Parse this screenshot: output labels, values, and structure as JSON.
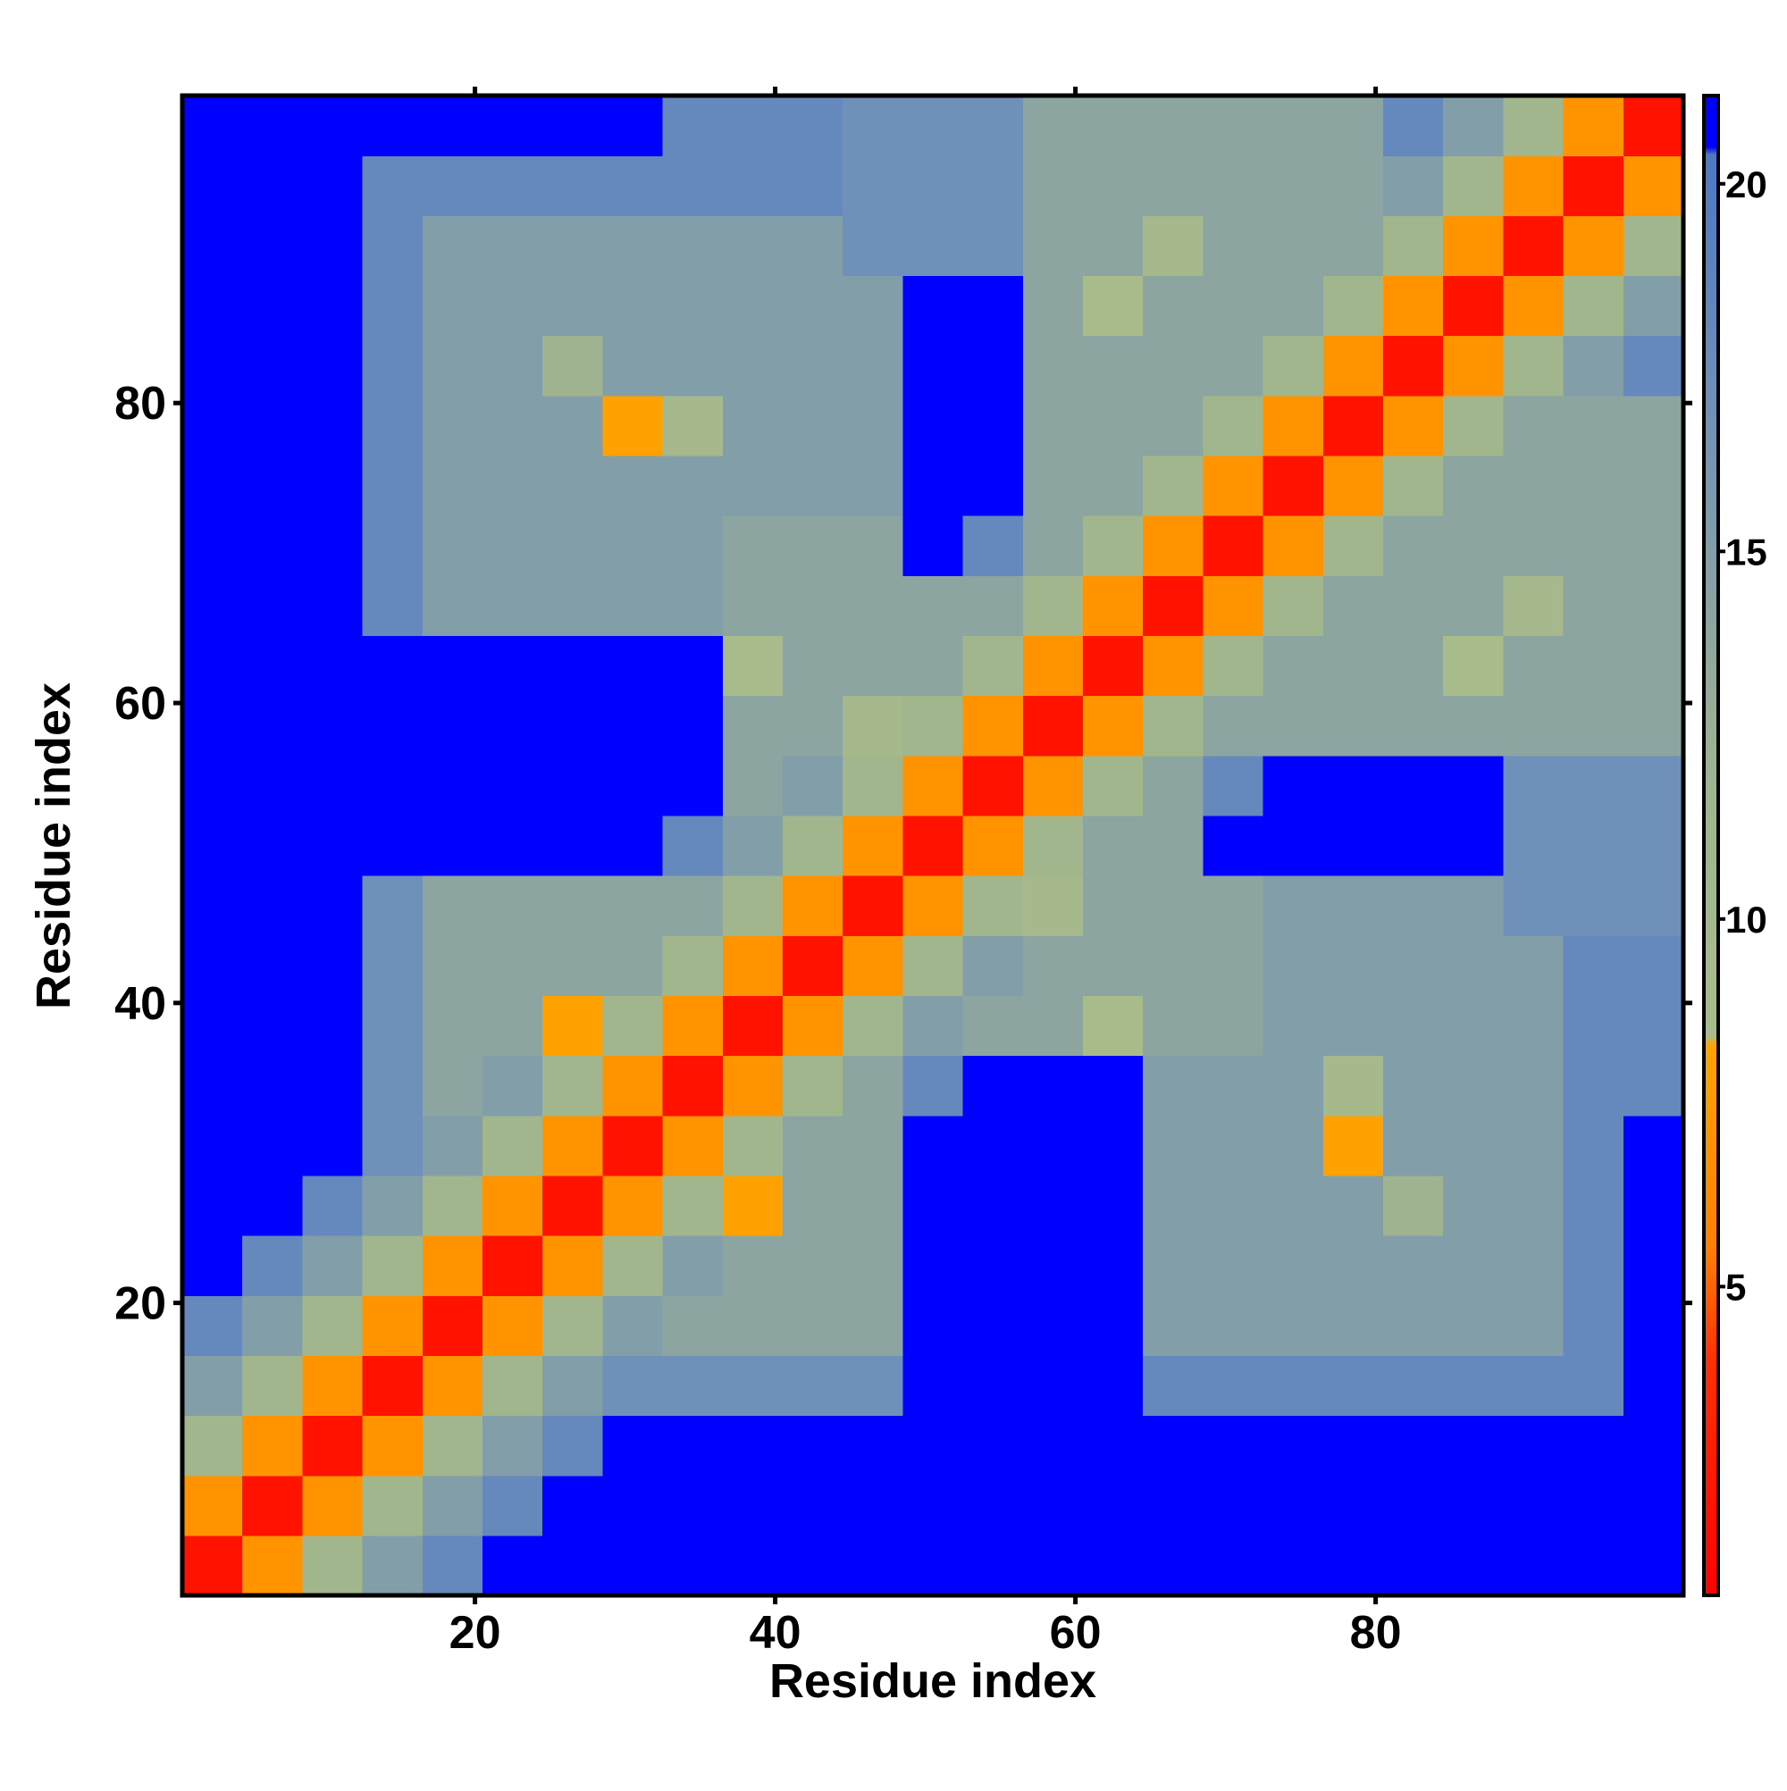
{
  "chart_data": {
    "type": "heatmap",
    "x_label": "Residue index",
    "y_label": "Residue index",
    "x": [
      2.5,
      6.5,
      10.5,
      14.5,
      18.5,
      22.5,
      26.5,
      30.5,
      34.5,
      38.5,
      42.5,
      46.5,
      50.5,
      54.5,
      58.5,
      62.5,
      66.5,
      70.5,
      74.5,
      78.5,
      82.5,
      86.5,
      90.5,
      94.5,
      98.5
    ],
    "y": [
      2.5,
      6.5,
      10.5,
      14.5,
      18.5,
      22.5,
      26.5,
      30.5,
      34.5,
      38.5,
      42.5,
      46.5,
      50.5,
      54.5,
      58.5,
      62.5,
      66.5,
      70.5,
      74.5,
      78.5,
      82.5,
      86.5,
      90.5,
      94.5,
      98.5
    ],
    "z": [
      [
        2,
        7,
        11,
        15,
        18,
        22,
        22,
        22,
        22,
        22,
        22,
        22,
        22,
        22,
        22,
        22,
        22,
        22,
        22,
        22,
        22,
        22,
        22,
        22,
        22
      ],
      [
        7,
        2,
        7,
        11,
        15,
        18,
        22,
        22,
        22,
        22,
        22,
        22,
        22,
        22,
        22,
        22,
        22,
        22,
        22,
        22,
        22,
        22,
        22,
        22,
        22
      ],
      [
        11,
        7,
        2,
        7,
        11,
        15,
        18,
        22,
        22,
        22,
        22,
        22,
        22,
        22,
        22,
        22,
        22,
        22,
        22,
        22,
        22,
        22,
        22,
        22,
        22
      ],
      [
        15,
        11,
        7,
        2,
        7,
        11,
        15,
        17,
        17,
        17,
        17,
        17,
        22,
        22,
        22,
        22,
        18,
        18,
        18,
        18,
        18,
        18,
        18,
        18,
        22
      ],
      [
        18,
        15,
        11,
        7,
        2,
        7,
        11,
        15,
        14,
        14,
        14,
        14,
        22,
        22,
        22,
        22,
        15,
        15,
        15,
        15,
        15,
        15,
        15,
        18,
        22
      ],
      [
        22,
        18,
        15,
        11,
        7,
        2,
        7,
        11,
        15,
        14,
        14,
        14,
        22,
        22,
        22,
        22,
        15,
        15,
        15,
        15,
        15,
        15,
        15,
        18,
        22
      ],
      [
        22,
        22,
        18,
        15,
        11,
        7,
        2,
        7,
        11,
        8,
        14,
        14,
        22,
        22,
        22,
        22,
        15,
        15,
        15,
        15,
        12,
        15,
        15,
        18,
        22
      ],
      [
        22,
        22,
        22,
        17,
        15,
        11,
        7,
        2,
        7,
        11,
        14,
        14,
        22,
        22,
        22,
        22,
        15,
        15,
        15,
        8,
        15,
        15,
        15,
        18,
        22
      ],
      [
        22,
        22,
        22,
        17,
        14,
        15,
        11,
        7,
        2,
        7,
        11,
        14,
        18,
        22,
        22,
        22,
        15,
        15,
        15,
        10,
        15,
        15,
        15,
        18,
        18
      ],
      [
        22,
        22,
        22,
        17,
        14,
        14,
        8,
        11,
        7,
        2,
        7,
        11,
        15,
        14,
        14,
        9,
        14,
        14,
        15,
        15,
        15,
        15,
        15,
        18,
        18
      ],
      [
        22,
        22,
        22,
        17,
        14,
        14,
        14,
        14,
        11,
        7,
        2,
        7,
        11,
        15,
        14,
        14,
        14,
        14,
        15,
        15,
        15,
        15,
        15,
        18,
        18
      ],
      [
        22,
        22,
        22,
        17,
        14,
        14,
        14,
        14,
        14,
        11,
        7,
        2,
        7,
        11,
        10,
        14,
        14,
        14,
        15,
        15,
        15,
        15,
        17,
        17,
        17
      ],
      [
        22,
        22,
        22,
        22,
        22,
        22,
        22,
        22,
        18,
        15,
        11,
        7,
        2,
        7,
        11,
        14,
        14,
        22,
        22,
        22,
        22,
        22,
        17,
        17,
        17
      ],
      [
        22,
        22,
        22,
        22,
        22,
        22,
        22,
        22,
        22,
        14,
        15,
        11,
        7,
        2,
        7,
        11,
        14,
        18,
        22,
        22,
        22,
        22,
        17,
        17,
        17
      ],
      [
        22,
        22,
        22,
        22,
        22,
        22,
        22,
        22,
        22,
        14,
        14,
        10,
        11,
        7,
        2,
        7,
        11,
        14,
        14,
        14,
        14,
        14,
        14,
        14,
        14
      ],
      [
        22,
        22,
        22,
        22,
        22,
        22,
        22,
        22,
        22,
        9,
        14,
        14,
        14,
        11,
        7,
        2,
        7,
        11,
        14,
        14,
        14,
        9,
        14,
        14,
        14
      ],
      [
        22,
        22,
        22,
        18,
        15,
        15,
        15,
        15,
        15,
        14,
        14,
        14,
        14,
        14,
        11,
        7,
        2,
        7,
        11,
        14,
        14,
        14,
        10,
        14,
        14
      ],
      [
        22,
        22,
        22,
        18,
        15,
        15,
        15,
        15,
        15,
        14,
        14,
        14,
        22,
        18,
        14,
        11,
        7,
        2,
        7,
        11,
        14,
        14,
        14,
        14,
        14
      ],
      [
        22,
        22,
        22,
        18,
        15,
        15,
        15,
        15,
        15,
        15,
        15,
        15,
        22,
        22,
        14,
        14,
        11,
        7,
        2,
        7,
        11,
        14,
        14,
        14,
        14
      ],
      [
        22,
        22,
        22,
        18,
        15,
        15,
        15,
        8,
        10,
        15,
        15,
        15,
        22,
        22,
        14,
        14,
        14,
        11,
        7,
        2,
        7,
        11,
        14,
        14,
        14
      ],
      [
        22,
        22,
        22,
        18,
        15,
        15,
        12,
        15,
        15,
        15,
        15,
        15,
        22,
        22,
        14,
        14,
        14,
        14,
        11,
        7,
        2,
        7,
        11,
        15,
        18
      ],
      [
        22,
        22,
        22,
        18,
        15,
        15,
        15,
        15,
        15,
        15,
        15,
        15,
        22,
        22,
        14,
        9,
        14,
        14,
        14,
        11,
        7,
        2,
        7,
        11,
        15
      ],
      [
        22,
        22,
        22,
        18,
        15,
        15,
        15,
        15,
        15,
        15,
        15,
        17,
        17,
        17,
        14,
        14,
        10,
        14,
        14,
        14,
        11,
        7,
        2,
        7,
        11
      ],
      [
        22,
        22,
        22,
        18,
        18,
        18,
        18,
        18,
        18,
        18,
        18,
        17,
        17,
        17,
        14,
        14,
        14,
        14,
        14,
        14,
        15,
        11,
        7,
        2,
        7
      ],
      [
        22,
        22,
        22,
        22,
        22,
        22,
        22,
        22,
        18,
        18,
        18,
        17,
        17,
        17,
        14,
        14,
        14,
        14,
        14,
        14,
        18,
        15,
        11,
        7,
        2
      ]
    ],
    "xlim": [
      0.5,
      100.5
    ],
    "ylim": [
      0.5,
      100.5
    ],
    "xticks": [
      20,
      40,
      60,
      80
    ],
    "yticks": [
      20,
      40,
      60,
      80
    ],
    "zlim": [
      0.8,
      21.2
    ],
    "zticks": [
      5,
      10,
      15,
      20
    ],
    "colorscale": [
      [
        0.8,
        "#ff0000"
      ],
      [
        4,
        "#ff3000"
      ],
      [
        5.5,
        "#ff7f00"
      ],
      [
        8.3,
        "#ffa500"
      ],
      [
        8.4,
        "#a9bd8a"
      ],
      [
        12,
        "#9fb390"
      ],
      [
        17,
        "#6f90b8"
      ],
      [
        20.4,
        "#4d78c4"
      ],
      [
        20.5,
        "#0000ff"
      ],
      [
        21.2,
        "#0000ff"
      ]
    ]
  }
}
